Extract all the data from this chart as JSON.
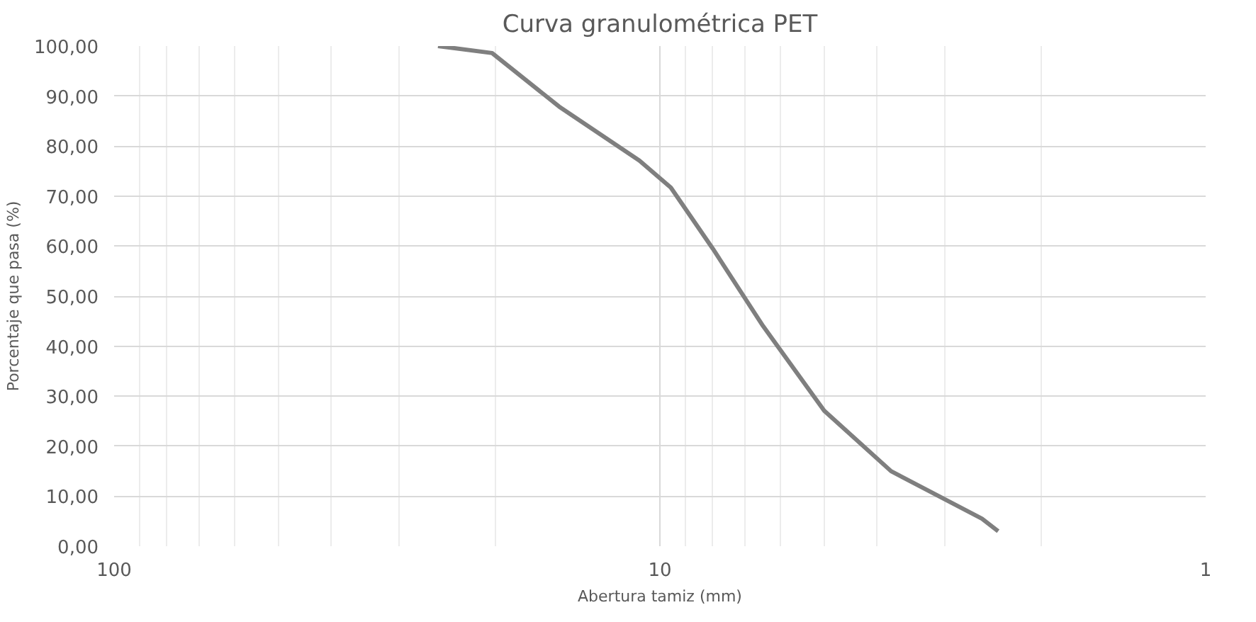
{
  "chart_data": {
    "type": "line",
    "title": "Curva granulométrica PET",
    "xlabel": "Abertura tamiz (mm)",
    "ylabel": "Porcentaje que pasa (%)",
    "log": "x",
    "xlim": [
      100,
      1
    ],
    "xticks": [
      100,
      10,
      1
    ],
    "ylim": [
      0,
      100
    ],
    "yticks": [
      {
        "value": 0,
        "label": "0,00"
      },
      {
        "value": 10,
        "label": "10,00"
      },
      {
        "value": 20,
        "label": "20,00"
      },
      {
        "value": 30,
        "label": "30,00"
      },
      {
        "value": 40,
        "label": "40,00"
      },
      {
        "value": 50,
        "label": "50,00"
      },
      {
        "value": 60,
        "label": "60,00"
      },
      {
        "value": 70,
        "label": "70,00"
      },
      {
        "value": 80,
        "label": "80,00"
      },
      {
        "value": 90,
        "label": "90,00"
      },
      {
        "value": 100,
        "label": "100,00"
      }
    ],
    "grid": true,
    "marker": "none",
    "line_style": "solid",
    "series": [
      {
        "color": "#7f7f7f",
        "x": [
          25.5,
          20.3,
          15.3,
          10.9,
          9.55,
          8.0,
          6.47,
          5.0,
          3.77,
          2.57,
          2.4
        ],
        "values": [
          100,
          98.6,
          87.9,
          77.1,
          71.7,
          59.5,
          44.0,
          27.1,
          15.0,
          5.5,
          3
        ]
      }
    ]
  }
}
